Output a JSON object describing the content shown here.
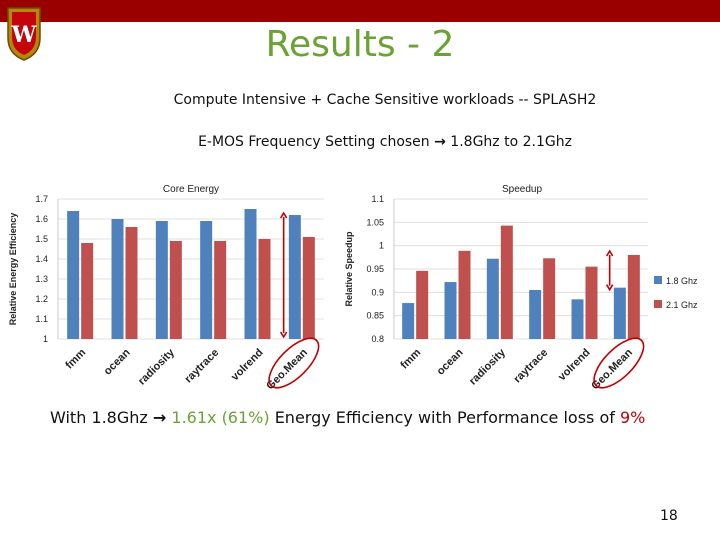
{
  "slide": {
    "title": "Results - 2",
    "line1": "Compute Intensive + Cache Sensitive workloads  -- SPLASH2",
    "line2_prefix": "E-MOS Frequency Setting chosen ",
    "arrow": "→",
    "line2_suffix": " 1.8Ghz to 2.1Ghz",
    "bottom_prefix": "With 1.8Ghz ",
    "bottom_highlight": " 1.61x (61%)",
    "bottom_middle": " Energy Efficiency  with Performance loss of ",
    "bottom_loss": "9%",
    "page_number": "18",
    "logo_letter": "W"
  },
  "colors": {
    "bar": "#9b0000",
    "title": "#6aa233",
    "series1": "#4f81bd",
    "series2": "#c0504d",
    "annotation": "#c00000"
  },
  "chart_data": [
    {
      "type": "bar",
      "title": "Core Energy",
      "ylabel": "Relative Energy Efficiency",
      "xlabel": "",
      "categories": [
        "fmm",
        "ocean",
        "radiosity",
        "raytrace",
        "volrend",
        "Geo.Mean"
      ],
      "series": [
        {
          "name": "1.8 Ghz",
          "values": [
            1.64,
            1.6,
            1.59,
            1.59,
            1.65,
            1.62
          ]
        },
        {
          "name": "2.1 Ghz",
          "values": [
            1.48,
            1.56,
            1.49,
            1.49,
            1.5,
            1.51
          ]
        }
      ],
      "ylim": [
        1,
        1.7
      ],
      "yticks": [
        "1",
        "1.1",
        "1.2",
        "1.3",
        "1.4",
        "1.5",
        "1.6",
        "1.7"
      ],
      "grid": true
    },
    {
      "type": "bar",
      "title": "Speedup",
      "ylabel": "Relative Speedup",
      "xlabel": "",
      "categories": [
        "fmm",
        "ocean",
        "radiosity",
        "raytrace",
        "volrend",
        "Geo.Mean"
      ],
      "series": [
        {
          "name": "1.8 Ghz",
          "values": [
            0.877,
            0.922,
            0.972,
            0.905,
            0.885,
            0.91
          ]
        },
        {
          "name": "2.1 Ghz",
          "values": [
            0.946,
            0.989,
            1.043,
            0.973,
            0.955,
            0.98
          ]
        }
      ],
      "ylim": [
        0.8,
        1.1
      ],
      "yticks": [
        "0.8",
        "0.85",
        "0.9",
        "0.95",
        "1",
        "1.05",
        "1.1"
      ],
      "grid": true,
      "legend": "right"
    }
  ]
}
